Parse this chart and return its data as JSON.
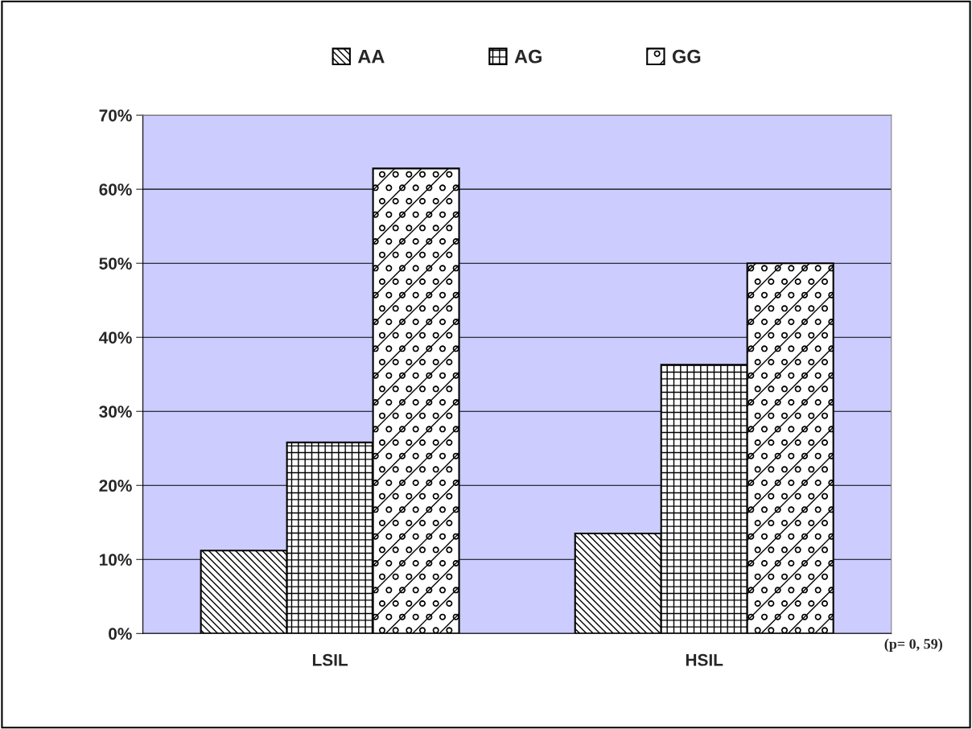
{
  "chart_data": {
    "type": "bar",
    "categories": [
      "LSIL",
      "HSIL"
    ],
    "series": [
      {
        "name": "AA",
        "color": "#000000",
        "values": [
          11.2,
          13.5
        ]
      },
      {
        "name": "AG",
        "color": "#000000",
        "values": [
          25.8,
          36.3
        ]
      },
      {
        "name": "GG",
        "color": "#000000",
        "values": [
          62.8,
          50.0
        ]
      }
    ],
    "ylim": [
      0,
      70
    ],
    "yticks": [
      {
        "value": 0,
        "label": "0%"
      },
      {
        "value": 10,
        "label": "10%"
      },
      {
        "value": 20,
        "label": "20%"
      },
      {
        "value": 30,
        "label": "30%"
      },
      {
        "value": 40,
        "label": "40%"
      },
      {
        "value": 50,
        "label": "50%"
      },
      {
        "value": 60,
        "label": "60%"
      },
      {
        "value": 70,
        "label": "70%"
      }
    ],
    "grid": "y",
    "legend": "top",
    "annotations": [
      "(p= 0, 59)"
    ]
  }
}
